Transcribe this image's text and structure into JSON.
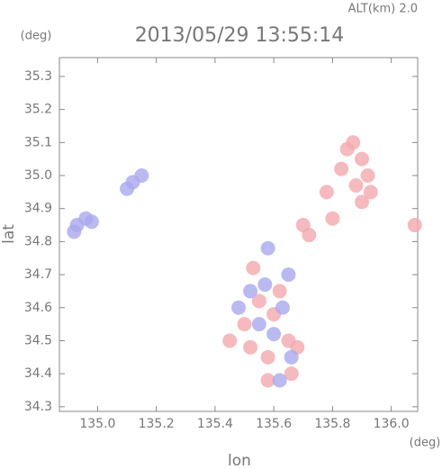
{
  "chart_data": {
    "type": "scatter",
    "annotation": "ALT(km) 2.0",
    "title": "2013/05/29 13:55:14",
    "y_unit": "(deg)",
    "x_unit": "(deg)",
    "x_label": "lon",
    "y_label": "lat",
    "xlim": [
      134.87,
      136.09
    ],
    "ylim": [
      34.286,
      35.357
    ],
    "xticks": [
      {
        "value": 135,
        "label": "135.0"
      },
      135.2,
      135.4,
      135.6,
      135.8,
      {
        "value": 136,
        "label": "136.0"
      }
    ],
    "yticks": [
      34.3,
      34.4,
      34.5,
      34.6,
      34.7,
      34.8,
      34.9,
      {
        "value": 35,
        "label": "35.0"
      },
      35.1,
      35.2,
      35.3
    ],
    "series": [
      {
        "color": "#f2a9ae",
        "x": [
          135.85,
          135.9,
          135.92,
          135.88,
          135.9,
          135.93,
          135.83,
          135.87,
          135.78,
          135.8,
          136.08,
          135.7,
          135.72,
          135.55,
          135.6,
          135.5,
          135.65,
          135.58,
          135.53,
          135.62,
          135.68,
          135.52,
          135.45,
          135.58,
          135.66
        ],
        "y": [
          35.08,
          35.05,
          35.0,
          34.97,
          34.92,
          34.95,
          35.02,
          35.1,
          34.95,
          34.87,
          34.85,
          34.85,
          34.82,
          34.62,
          34.58,
          34.55,
          34.5,
          34.45,
          34.72,
          34.65,
          34.48,
          34.48,
          34.5,
          34.38,
          34.4
        ]
      },
      {
        "color": "#a9a9ee",
        "x": [
          134.93,
          134.96,
          134.92,
          134.98,
          135.12,
          135.15,
          135.1,
          135.57,
          135.55,
          135.63,
          135.6,
          135.52,
          135.66,
          135.62,
          135.58,
          135.48,
          135.65
        ],
        "y": [
          34.85,
          34.87,
          34.83,
          34.86,
          34.98,
          35.0,
          34.96,
          34.67,
          34.55,
          34.6,
          34.52,
          34.65,
          34.45,
          34.38,
          34.78,
          34.6,
          34.7
        ]
      }
    ]
  }
}
